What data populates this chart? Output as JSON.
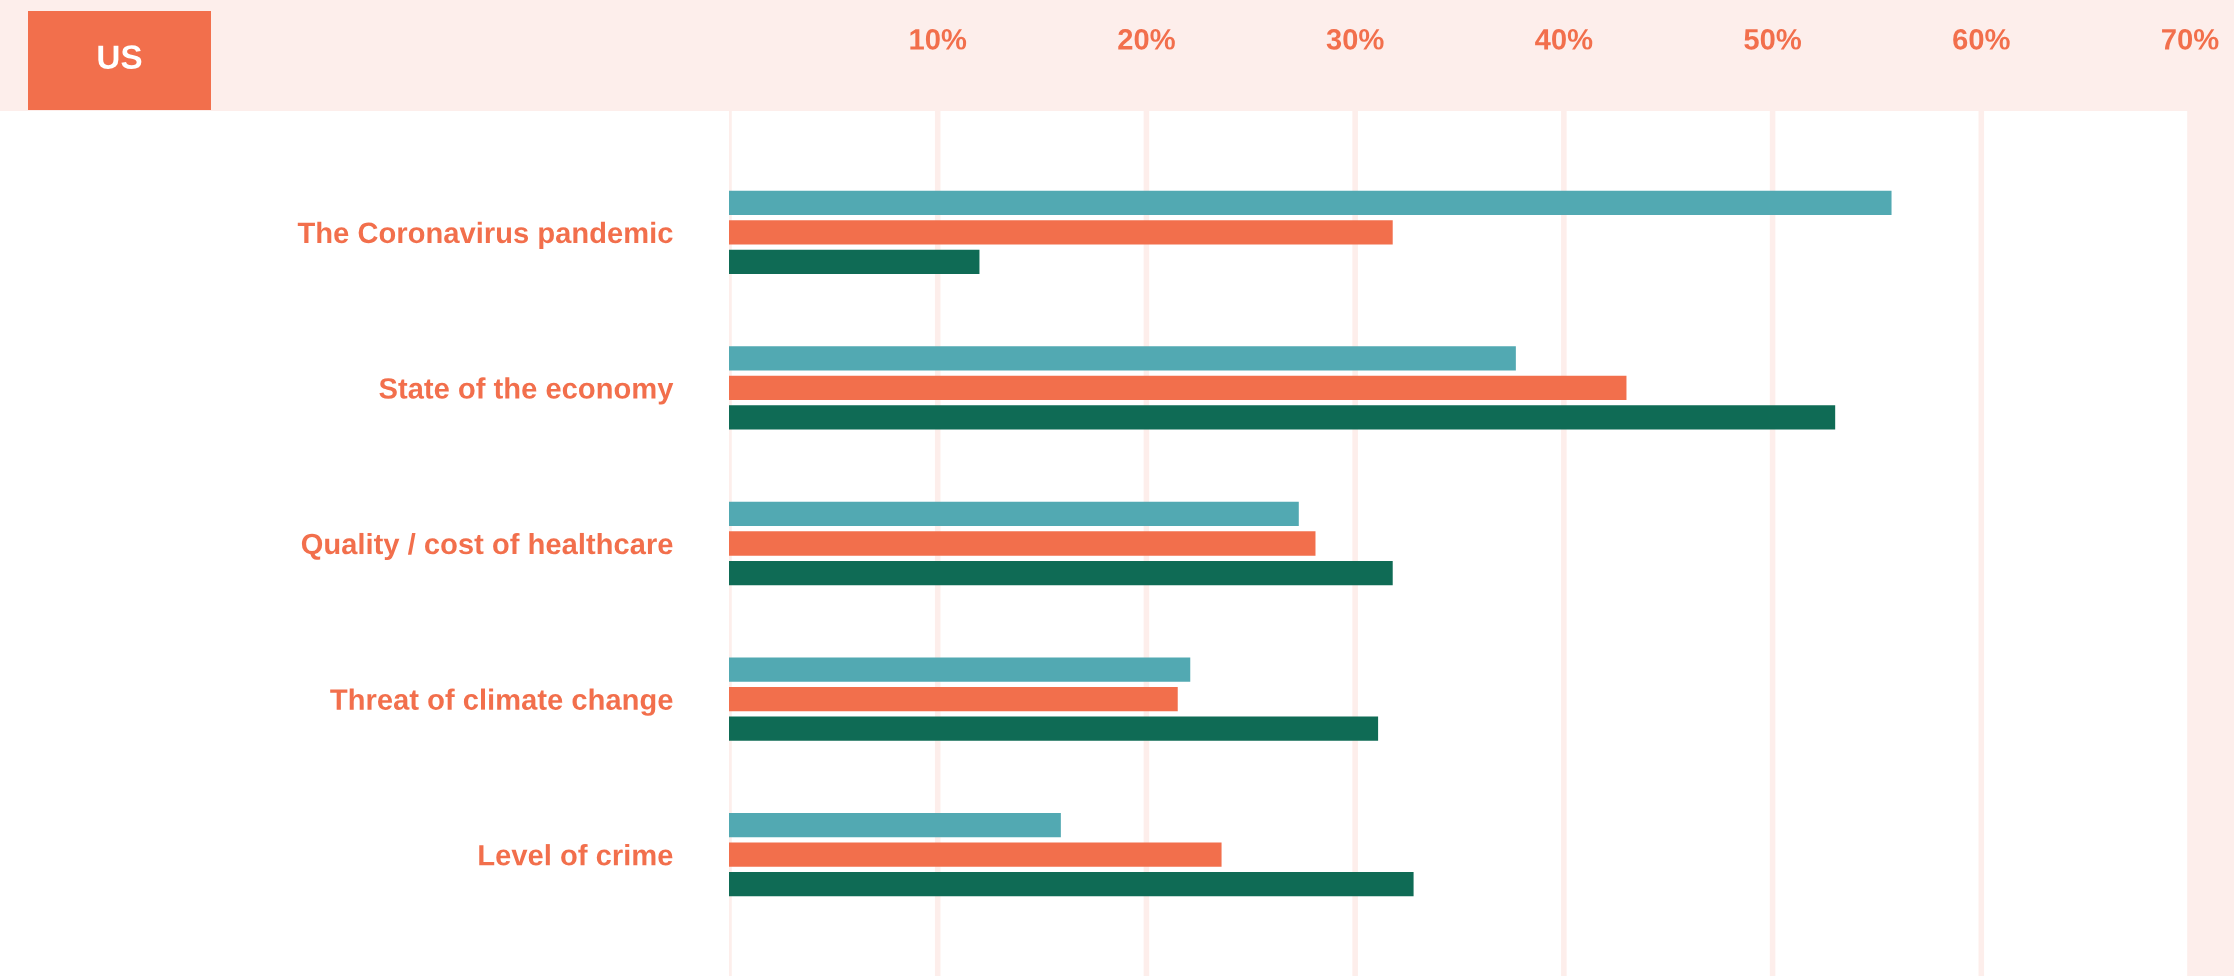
{
  "chart_data": {
    "type": "bar",
    "orientation": "horizontal",
    "title": "US",
    "categories": [
      "The Coronavirus pandemic",
      "State of the economy",
      "Quality / cost of healthcare",
      "Threat of climate change",
      "Level of crime"
    ],
    "series": [
      {
        "color": "#52a9b2",
        "values": [
          55.7,
          37.7,
          27.3,
          22.1,
          15.9
        ]
      },
      {
        "color": "#f26f4c",
        "values": [
          31.8,
          43.0,
          28.1,
          21.5,
          23.6
        ]
      },
      {
        "color": "#0f6b55",
        "values": [
          12.0,
          53.0,
          31.8,
          31.1,
          32.8
        ]
      }
    ],
    "xlim": [
      0,
      70
    ],
    "xticks": [
      {
        "value": 0,
        "label": null
      },
      {
        "value": 10,
        "label": "10%"
      },
      {
        "value": 20,
        "label": "20%"
      },
      {
        "value": 30,
        "label": "30%"
      },
      {
        "value": 40,
        "label": "40%"
      },
      {
        "value": 50,
        "label": "50%"
      },
      {
        "value": 60,
        "label": "60%"
      },
      {
        "value": 70,
        "label": "70%"
      }
    ],
    "grid": "x"
  }
}
